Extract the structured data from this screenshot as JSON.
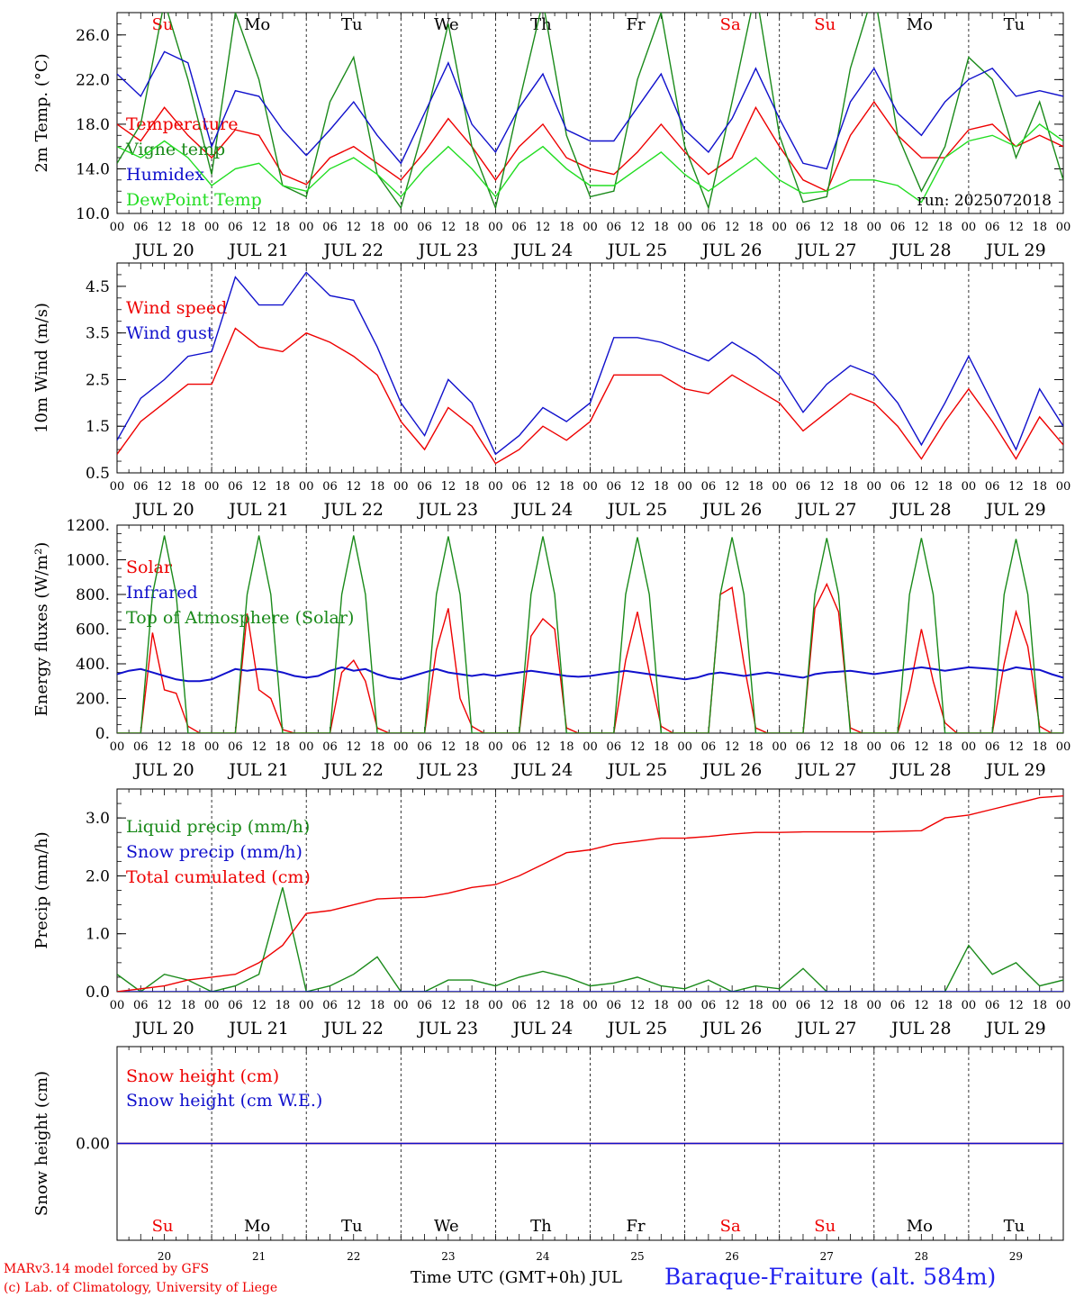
{
  "run_label": "run: 2025072018",
  "footer": {
    "credit_line1": "MARv3.14 model forced by GFS",
    "credit_line2": "(c) Lab. of Climatology, University of Liege",
    "time_axis_label": "Time UTC (GMT+0h) JUL",
    "station": "Baraque-Fraiture (alt. 584m)"
  },
  "colors": {
    "red": "#ee0000",
    "green": "#1a8a1a",
    "blue": "#1010cc",
    "lightgreen": "#22dd22",
    "weekend_label": "#ee0000",
    "weekday_label": "#000000",
    "station_label": "#2222ee"
  },
  "days": [
    {
      "date": "JUL 20",
      "dom": "20",
      "wd": "Su",
      "weekend": true
    },
    {
      "date": "JUL 21",
      "dom": "21",
      "wd": "Mo",
      "weekend": false
    },
    {
      "date": "JUL 22",
      "dom": "22",
      "wd": "Tu",
      "weekend": false
    },
    {
      "date": "JUL 23",
      "dom": "23",
      "wd": "We",
      "weekend": false
    },
    {
      "date": "JUL 24",
      "dom": "24",
      "wd": "Th",
      "weekend": false
    },
    {
      "date": "JUL 25",
      "dom": "25",
      "wd": "Fr",
      "weekend": false
    },
    {
      "date": "JUL 26",
      "dom": "26",
      "wd": "Sa",
      "weekend": true
    },
    {
      "date": "JUL 27",
      "dom": "27",
      "wd": "Su",
      "weekend": true
    },
    {
      "date": "JUL 28",
      "dom": "28",
      "wd": "Mo",
      "weekend": false
    },
    {
      "date": "JUL 29",
      "dom": "29",
      "wd": "Tu",
      "weekend": false
    }
  ],
  "hour_labels": [
    "00",
    "06",
    "12",
    "18"
  ],
  "chart_data": [
    {
      "id": "temp",
      "type": "line",
      "ylabel": "2m Temp. (°C)",
      "ylim": [
        10,
        28
      ],
      "yticks": [
        10,
        14,
        18,
        22,
        26
      ],
      "ytick_labels": [
        "10.0",
        "14.0",
        "18.0",
        "22.0",
        "26.0"
      ],
      "show_weekdays": true,
      "x_hours": [
        0,
        6,
        12,
        18,
        24,
        30,
        36,
        42,
        48,
        54,
        60,
        66,
        72,
        78,
        84,
        90,
        96,
        102,
        108,
        114,
        120,
        126,
        132,
        138,
        144,
        150,
        156,
        162,
        168,
        174,
        180,
        186,
        192,
        198,
        204,
        210,
        216,
        222,
        228,
        234,
        240
      ],
      "series": [
        {
          "name": "Temperature",
          "color": "red",
          "values": [
            18.0,
            16.5,
            19.5,
            17.0,
            15.0,
            17.5,
            17.0,
            13.5,
            12.6,
            15.0,
            16.0,
            14.5,
            13.0,
            15.5,
            18.5,
            16.0,
            13.0,
            16.0,
            18.0,
            15.0,
            14.0,
            13.5,
            15.5,
            18.0,
            15.5,
            13.5,
            15.0,
            19.5,
            16.0,
            13.0,
            12.0,
            17.0,
            20.0,
            17.0,
            15.0,
            15.0,
            17.5,
            18.0,
            16.0,
            17.0,
            16.0
          ]
        },
        {
          "name": "Vigne temp",
          "color": "green",
          "values": [
            14.5,
            18.0,
            29.0,
            22.0,
            13.5,
            28.0,
            22.0,
            12.5,
            11.5,
            20.0,
            24.0,
            13.5,
            10.5,
            18.0,
            27.0,
            16.0,
            10.5,
            20.0,
            29.0,
            17.0,
            11.5,
            12.0,
            22.0,
            28.0,
            16.0,
            10.5,
            20.0,
            30.0,
            17.0,
            11.0,
            11.5,
            23.0,
            30.0,
            17.0,
            12.0,
            16.0,
            24.0,
            22.0,
            15.0,
            20.0,
            13.0
          ]
        },
        {
          "name": "Humidex",
          "color": "blue",
          "values": [
            22.5,
            20.5,
            24.5,
            23.5,
            16.0,
            21.0,
            20.5,
            17.5,
            15.2,
            17.5,
            20.0,
            17.0,
            14.5,
            19.0,
            23.5,
            18.0,
            15.5,
            19.5,
            22.5,
            17.5,
            16.5,
            16.5,
            19.5,
            22.5,
            17.5,
            15.5,
            18.5,
            23.0,
            18.5,
            14.5,
            14.0,
            20.0,
            23.0,
            19.0,
            17.0,
            20.0,
            22.0,
            23.0,
            20.5,
            21.0,
            20.5
          ]
        },
        {
          "name": "DewPoint Temp",
          "color": "lightgreen",
          "values": [
            16.0,
            15.0,
            16.5,
            15.0,
            12.5,
            14.0,
            14.5,
            12.5,
            12.0,
            14.0,
            15.0,
            13.5,
            11.5,
            14.0,
            16.0,
            14.0,
            11.5,
            14.5,
            16.0,
            14.0,
            12.5,
            12.5,
            14.0,
            15.5,
            13.5,
            12.0,
            13.5,
            15.0,
            13.0,
            11.8,
            12.0,
            13.0,
            13.0,
            12.5,
            11.0,
            15.0,
            16.5,
            17.0,
            16.0,
            18.0,
            16.5
          ]
        }
      ]
    },
    {
      "id": "wind",
      "type": "line",
      "ylabel": "10m Wind (m/s)",
      "ylim": [
        0.5,
        5.0
      ],
      "yticks": [
        0.5,
        1.5,
        2.5,
        3.5,
        4.5
      ],
      "ytick_labels": [
        "0.5",
        "1.5",
        "2.5",
        "3.5",
        "4.5"
      ],
      "show_weekdays": false,
      "x_hours": [
        0,
        6,
        12,
        18,
        24,
        30,
        36,
        42,
        48,
        54,
        60,
        66,
        72,
        78,
        84,
        90,
        96,
        102,
        108,
        114,
        120,
        126,
        132,
        138,
        144,
        150,
        156,
        162,
        168,
        174,
        180,
        186,
        192,
        198,
        204,
        210,
        216,
        222,
        228,
        234,
        240
      ],
      "series": [
        {
          "name": "Wind speed",
          "color": "red",
          "values": [
            0.9,
            1.6,
            2.0,
            2.4,
            2.4,
            3.6,
            3.2,
            3.1,
            3.5,
            3.3,
            3.0,
            2.6,
            1.6,
            1.0,
            1.9,
            1.5,
            0.7,
            1.0,
            1.5,
            1.2,
            1.6,
            2.6,
            2.6,
            2.6,
            2.3,
            2.2,
            2.6,
            2.3,
            2.0,
            1.4,
            1.8,
            2.2,
            2.0,
            1.5,
            0.8,
            1.6,
            2.3,
            1.6,
            0.8,
            1.7,
            1.1
          ]
        },
        {
          "name": "Wind gust",
          "color": "blue",
          "values": [
            1.2,
            2.1,
            2.5,
            3.0,
            3.1,
            4.7,
            4.1,
            4.1,
            4.8,
            4.3,
            4.2,
            3.2,
            2.0,
            1.3,
            2.5,
            2.0,
            0.9,
            1.3,
            1.9,
            1.6,
            2.0,
            3.4,
            3.4,
            3.3,
            3.1,
            2.9,
            3.3,
            3.0,
            2.6,
            1.8,
            2.4,
            2.8,
            2.6,
            2.0,
            1.1,
            2.0,
            3.0,
            2.0,
            1.0,
            2.3,
            1.5
          ]
        }
      ]
    },
    {
      "id": "energy",
      "type": "line",
      "ylabel": "Energy fluxes (W/m²)",
      "ylim": [
        0,
        1200
      ],
      "yticks": [
        0,
        200,
        400,
        600,
        800,
        1000,
        1200
      ],
      "ytick_labels": [
        "0.",
        "200.",
        "400.",
        "600.",
        "800.",
        "1000.",
        "1200."
      ],
      "show_weekdays": false,
      "x_hours": [
        0,
        3,
        6,
        9,
        12,
        15,
        18,
        21,
        24,
        27,
        30,
        33,
        36,
        39,
        42,
        45,
        48,
        51,
        54,
        57,
        60,
        63,
        66,
        69,
        72,
        75,
        78,
        81,
        84,
        87,
        90,
        93,
        96,
        99,
        102,
        105,
        108,
        111,
        114,
        117,
        120,
        123,
        126,
        129,
        132,
        135,
        138,
        141,
        144,
        147,
        150,
        153,
        156,
        159,
        162,
        165,
        168,
        171,
        174,
        177,
        180,
        183,
        186,
        189,
        192,
        195,
        198,
        201,
        204,
        207,
        210,
        213,
        216,
        219,
        222,
        225,
        228,
        231,
        234,
        237,
        240
      ],
      "series": [
        {
          "name": "Solar",
          "color": "red",
          "values": [
            0,
            0,
            0,
            580,
            250,
            230,
            40,
            0,
            0,
            0,
            0,
            690,
            250,
            200,
            20,
            0,
            0,
            0,
            0,
            350,
            420,
            300,
            30,
            0,
            0,
            0,
            0,
            480,
            720,
            200,
            40,
            0,
            0,
            0,
            0,
            560,
            660,
            600,
            30,
            0,
            0,
            0,
            0,
            420,
            700,
            350,
            40,
            0,
            0,
            0,
            0,
            800,
            840,
            400,
            30,
            0,
            0,
            0,
            0,
            720,
            860,
            700,
            30,
            0,
            0,
            0,
            0,
            250,
            600,
            300,
            60,
            0,
            0,
            0,
            0,
            400,
            700,
            500,
            40,
            0,
            0
          ]
        },
        {
          "name": "Infrared",
          "color": "blue",
          "values": [
            340,
            360,
            370,
            350,
            330,
            310,
            300,
            300,
            310,
            340,
            370,
            360,
            370,
            365,
            350,
            330,
            320,
            330,
            360,
            380,
            360,
            370,
            340,
            320,
            310,
            330,
            350,
            370,
            350,
            340,
            330,
            340,
            330,
            340,
            350,
            360,
            350,
            340,
            330,
            325,
            330,
            340,
            350,
            360,
            350,
            340,
            330,
            320,
            310,
            320,
            340,
            350,
            340,
            330,
            340,
            350,
            340,
            330,
            320,
            340,
            350,
            355,
            360,
            350,
            340,
            350,
            360,
            370,
            380,
            370,
            360,
            370,
            380,
            375,
            370,
            360,
            380,
            370,
            365,
            340,
            320
          ]
        },
        {
          "name": "Top of Atmosphere (Solar)",
          "color": "green",
          "values": [
            0,
            0,
            0,
            800,
            1140,
            800,
            0,
            0,
            0,
            0,
            0,
            800,
            1140,
            800,
            0,
            0,
            0,
            0,
            0,
            800,
            1140,
            800,
            0,
            0,
            0,
            0,
            0,
            800,
            1135,
            800,
            0,
            0,
            0,
            0,
            0,
            800,
            1135,
            800,
            0,
            0,
            0,
            0,
            0,
            800,
            1130,
            800,
            0,
            0,
            0,
            0,
            0,
            800,
            1130,
            800,
            0,
            0,
            0,
            0,
            0,
            800,
            1125,
            800,
            0,
            0,
            0,
            0,
            0,
            800,
            1125,
            800,
            0,
            0,
            0,
            0,
            0,
            800,
            1120,
            800,
            0,
            0,
            0
          ]
        }
      ]
    },
    {
      "id": "precip",
      "type": "line",
      "ylabel": "Precip (mm/h)",
      "ylim": [
        0,
        3.5
      ],
      "yticks": [
        0,
        1,
        2,
        3
      ],
      "ytick_labels": [
        "0.0",
        "1.0",
        "2.0",
        "3.0"
      ],
      "show_weekdays": false,
      "x_hours": [
        0,
        6,
        12,
        18,
        24,
        30,
        36,
        42,
        48,
        54,
        60,
        66,
        72,
        78,
        84,
        90,
        96,
        102,
        108,
        114,
        120,
        126,
        132,
        138,
        144,
        150,
        156,
        162,
        168,
        174,
        180,
        186,
        192,
        198,
        204,
        210,
        216,
        222,
        228,
        234,
        240
      ],
      "series": [
        {
          "name": "Liquid precip (mm/h)",
          "color": "green",
          "values": [
            0.3,
            0.0,
            0.3,
            0.2,
            0.0,
            0.1,
            0.3,
            1.8,
            0.0,
            0.1,
            0.3,
            0.6,
            0.0,
            0.0,
            0.2,
            0.2,
            0.1,
            0.25,
            0.35,
            0.25,
            0.1,
            0.15,
            0.25,
            0.1,
            0.05,
            0.2,
            0.0,
            0.1,
            0.05,
            0.4,
            0.0,
            0.0,
            0.0,
            0.0,
            0.0,
            0.0,
            0.8,
            0.3,
            0.5,
            0.1,
            0.2
          ]
        },
        {
          "name": "Snow precip (mm/h)",
          "color": "blue",
          "values": [
            0,
            0,
            0,
            0,
            0,
            0,
            0,
            0,
            0,
            0,
            0,
            0,
            0,
            0,
            0,
            0,
            0,
            0,
            0,
            0,
            0,
            0,
            0,
            0,
            0,
            0,
            0,
            0,
            0,
            0,
            0,
            0,
            0,
            0,
            0,
            0,
            0,
            0,
            0,
            0,
            0
          ]
        },
        {
          "name": "Total cumulated (cm)",
          "color": "red",
          "values": [
            0.0,
            0.05,
            0.1,
            0.2,
            0.25,
            0.3,
            0.5,
            0.8,
            1.35,
            1.4,
            1.5,
            1.6,
            1.62,
            1.63,
            1.7,
            1.8,
            1.85,
            2.0,
            2.2,
            2.4,
            2.45,
            2.55,
            2.6,
            2.65,
            2.65,
            2.68,
            2.72,
            2.75,
            2.75,
            2.76,
            2.76,
            2.76,
            2.76,
            2.77,
            2.78,
            3.0,
            3.05,
            3.15,
            3.25,
            3.35,
            3.38
          ]
        }
      ]
    },
    {
      "id": "snow",
      "type": "line",
      "ylabel": "Snow height (cm)",
      "ylim": [
        -1,
        1
      ],
      "yticks": [
        0
      ],
      "ytick_labels": [
        "0.00"
      ],
      "show_weekdays": true,
      "weekday_position": "bottom",
      "x_hours": [
        0,
        240
      ],
      "series": [
        {
          "name": "Snow height (cm)",
          "color": "red",
          "values": [
            0,
            0
          ]
        },
        {
          "name": "Snow height (cm W.E.)",
          "color": "blue",
          "values": [
            0,
            0
          ]
        }
      ]
    }
  ]
}
